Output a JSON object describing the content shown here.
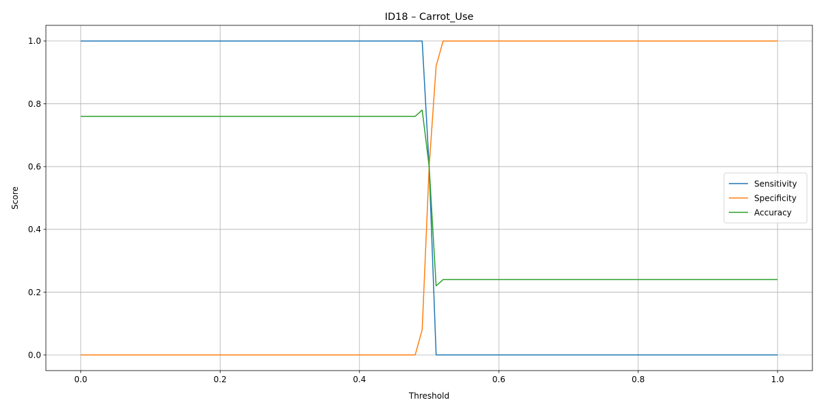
{
  "chart_data": {
    "type": "line",
    "title": "ID18 – Carrot_Use",
    "xlabel": "Threshold",
    "ylabel": "Score",
    "xlim": [
      -0.05,
      1.05
    ],
    "ylim": [
      -0.05,
      1.05
    ],
    "xticks": [
      "0.0",
      "0.2",
      "0.4",
      "0.6",
      "0.8",
      "1.0"
    ],
    "yticks": [
      "0.0",
      "0.2",
      "0.4",
      "0.6",
      "0.8",
      "1.0"
    ],
    "grid": true,
    "legend_position": "center-right",
    "series": [
      {
        "name": "Sensitivity",
        "color": "#1f77b4",
        "points": [
          [
            0.0,
            1.0
          ],
          [
            0.48,
            1.0
          ],
          [
            0.49,
            1.0
          ],
          [
            0.5,
            0.6
          ],
          [
            0.51,
            0.0
          ],
          [
            0.52,
            0.0
          ],
          [
            1.0,
            0.0
          ]
        ]
      },
      {
        "name": "Specificity",
        "color": "#ff7f0e",
        "points": [
          [
            0.0,
            0.0
          ],
          [
            0.48,
            0.0
          ],
          [
            0.49,
            0.08
          ],
          [
            0.5,
            0.6
          ],
          [
            0.51,
            0.92
          ],
          [
            0.52,
            1.0
          ],
          [
            1.0,
            1.0
          ]
        ]
      },
      {
        "name": "Accuracy",
        "color": "#2ca02c",
        "points": [
          [
            0.0,
            0.76
          ],
          [
            0.48,
            0.76
          ],
          [
            0.49,
            0.78
          ],
          [
            0.5,
            0.6
          ],
          [
            0.51,
            0.22
          ],
          [
            0.52,
            0.24
          ],
          [
            1.0,
            0.24
          ]
        ]
      }
    ]
  }
}
